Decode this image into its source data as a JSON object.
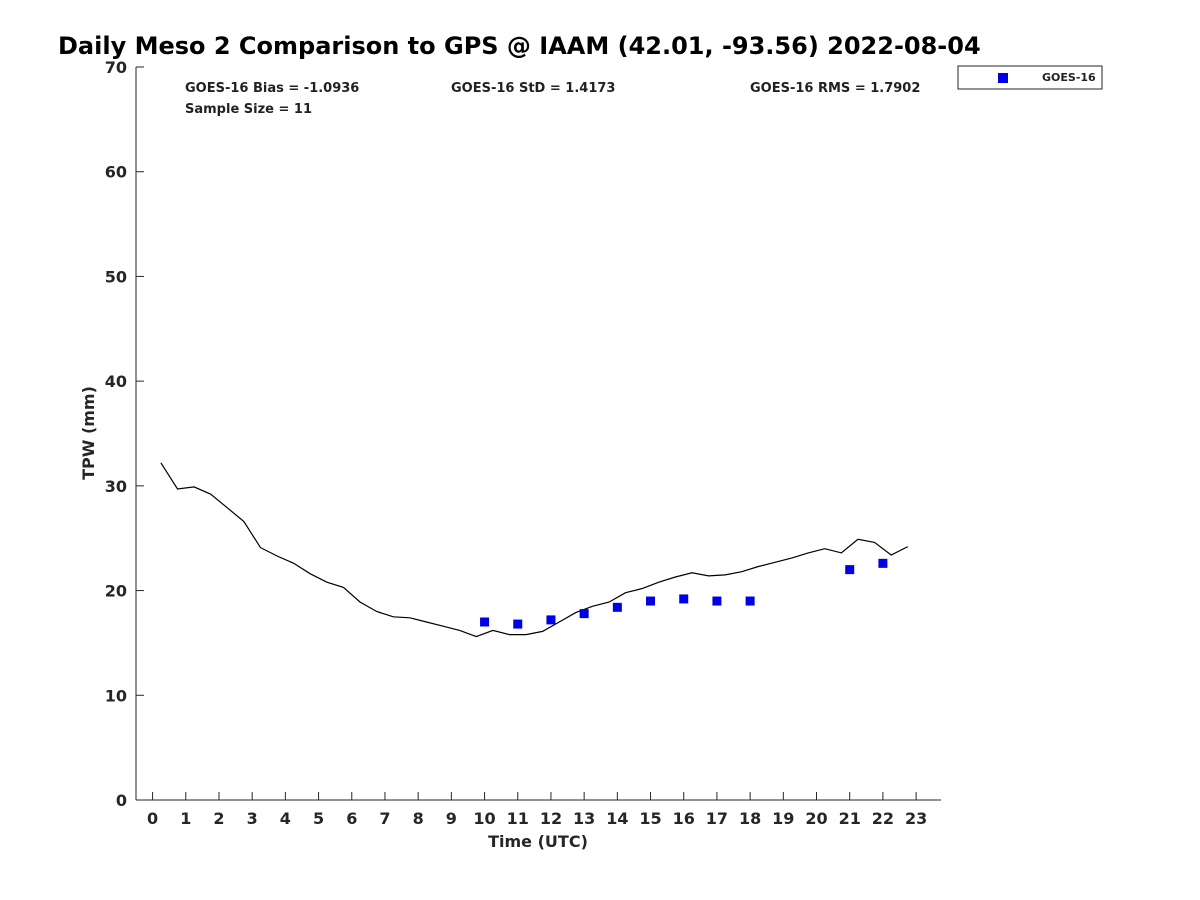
{
  "chart_data": {
    "type": "scatter",
    "title": "Daily Meso 2 Comparison to GPS @ IAAM (42.01, -93.56) 2022-08-04",
    "xlabel": "Time (UTC)",
    "ylabel": "TPW (mm)",
    "xlim": [
      -0.5,
      23.75
    ],
    "ylim": [
      0,
      70
    ],
    "x_ticks": [
      0,
      1,
      2,
      3,
      4,
      5,
      6,
      7,
      8,
      9,
      10,
      11,
      12,
      13,
      14,
      15,
      16,
      17,
      18,
      19,
      20,
      21,
      22,
      23
    ],
    "y_ticks": [
      0,
      10,
      20,
      30,
      40,
      50,
      60,
      70
    ],
    "stats": {
      "bias": "GOES-16 Bias = -1.0936",
      "std": "GOES-16 StD = 1.4173",
      "rms": "GOES-16 RMS = 1.7902",
      "sample": "Sample Size = 11"
    },
    "legend": {
      "position": "top-right-outside",
      "entries": [
        "GOES-16"
      ]
    },
    "colors": {
      "goes": "#0000e6",
      "gps_line": "#000000",
      "axis": "#262626"
    },
    "series": [
      {
        "name": "GOES-16",
        "kind": "markers",
        "x": [
          10,
          11,
          12,
          13,
          14,
          15,
          16,
          17,
          18,
          21,
          22
        ],
        "y": [
          17.0,
          16.8,
          17.2,
          17.8,
          18.4,
          19.0,
          19.2,
          19.0,
          19.0,
          22.0,
          22.6
        ]
      },
      {
        "name": "GPS",
        "kind": "line",
        "x": [
          0.25,
          0.75,
          1.25,
          1.75,
          2.25,
          2.75,
          3.25,
          3.75,
          4.25,
          4.75,
          5.25,
          5.75,
          6.25,
          6.75,
          7.25,
          7.75,
          8.25,
          8.75,
          9.25,
          9.75,
          10.25,
          10.75,
          11.25,
          11.75,
          12.25,
          12.75,
          13.25,
          13.75,
          14.25,
          14.75,
          15.25,
          15.75,
          16.25,
          16.75,
          17.25,
          17.75,
          18.25,
          18.75,
          19.25,
          19.75,
          20.25,
          20.75,
          21.25,
          21.75,
          22.25,
          22.75
        ],
        "y": [
          32.2,
          29.7,
          29.9,
          29.2,
          27.9,
          26.6,
          24.1,
          23.3,
          22.6,
          21.6,
          20.8,
          20.3,
          18.9,
          18.0,
          17.5,
          17.4,
          17.0,
          16.6,
          16.2,
          15.6,
          16.2,
          15.8,
          15.8,
          16.1,
          17.0,
          17.9,
          18.5,
          18.9,
          19.8,
          20.2,
          20.8,
          21.3,
          21.7,
          21.4,
          21.5,
          21.8,
          22.3,
          22.7,
          23.1,
          23.6,
          24.0,
          23.6,
          24.9,
          24.6,
          23.4,
          24.2
        ]
      }
    ]
  }
}
